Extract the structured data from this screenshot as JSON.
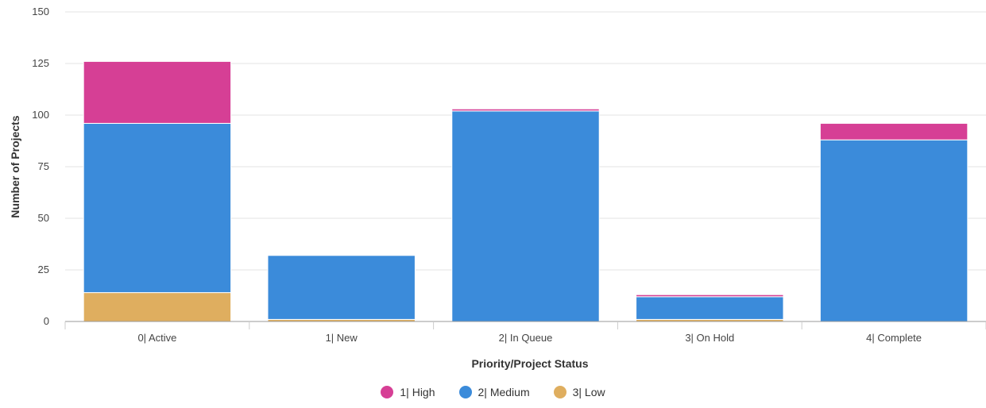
{
  "chart_data": {
    "type": "bar",
    "stacked": true,
    "categories": [
      "0| Active",
      "1| New",
      "2| In Queue",
      "3| On Hold",
      "4| Complete"
    ],
    "series": [
      {
        "name": "1| High",
        "color": "#d63f95",
        "values": [
          30,
          0,
          1,
          1,
          8
        ]
      },
      {
        "name": "2| Medium",
        "color": "#3b8bda",
        "values": [
          82,
          31,
          102,
          11,
          88
        ]
      },
      {
        "name": "3| Low",
        "color": "#dfae5f",
        "values": [
          14,
          1,
          0,
          1,
          0
        ]
      }
    ],
    "xlabel": "Priority/Project Status",
    "ylabel": "Number of Projects",
    "ylim": [
      0,
      150
    ],
    "yticks": [
      0,
      25,
      50,
      75,
      100,
      125,
      150
    ],
    "grid": true,
    "legend_position": "bottom"
  }
}
